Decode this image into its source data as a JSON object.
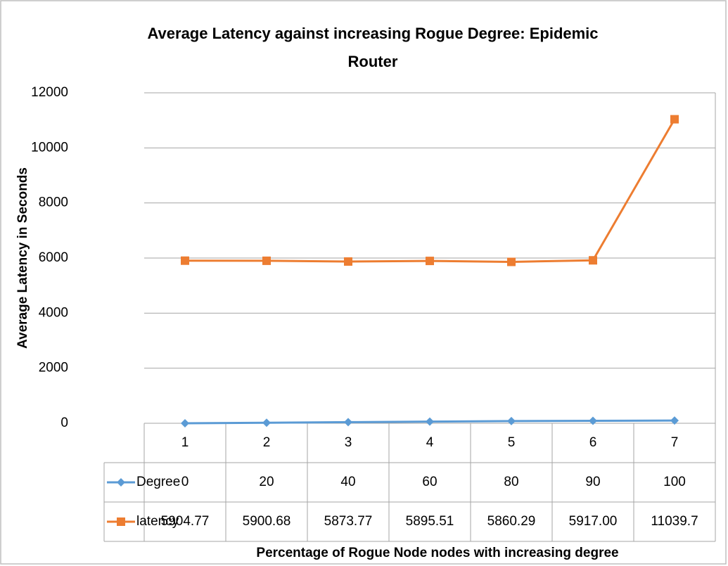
{
  "chart_data": {
    "type": "line",
    "title": "Average Latency against increasing Rogue Degree: Epidemic Router",
    "y_label": "Average Latency in Seconds",
    "x_label": "Percentage of Rogue Node nodes with increasing degree",
    "categories": [
      "1",
      "2",
      "3",
      "4",
      "5",
      "6",
      "7"
    ],
    "series": [
      {
        "name": "Degree",
        "color": "#5b9bd5",
        "marker": "diamond",
        "values": [
          0,
          20,
          40,
          60,
          80,
          90,
          100
        ]
      },
      {
        "name": "latency",
        "color": "#ed7d31",
        "marker": "square",
        "values": [
          5904.77,
          5900.68,
          5873.77,
          5895.51,
          5860.29,
          5917.0,
          11039.7
        ],
        "value_labels": [
          "5904.77",
          "5900.68",
          "5873.77",
          "5895.51",
          "5860.29",
          "5917.00",
          "11039.7"
        ]
      }
    ],
    "ylim": [
      0,
      12000
    ],
    "yticks": [
      0,
      2000,
      4000,
      6000,
      8000,
      10000,
      12000
    ],
    "grid": true,
    "data_table": true
  }
}
